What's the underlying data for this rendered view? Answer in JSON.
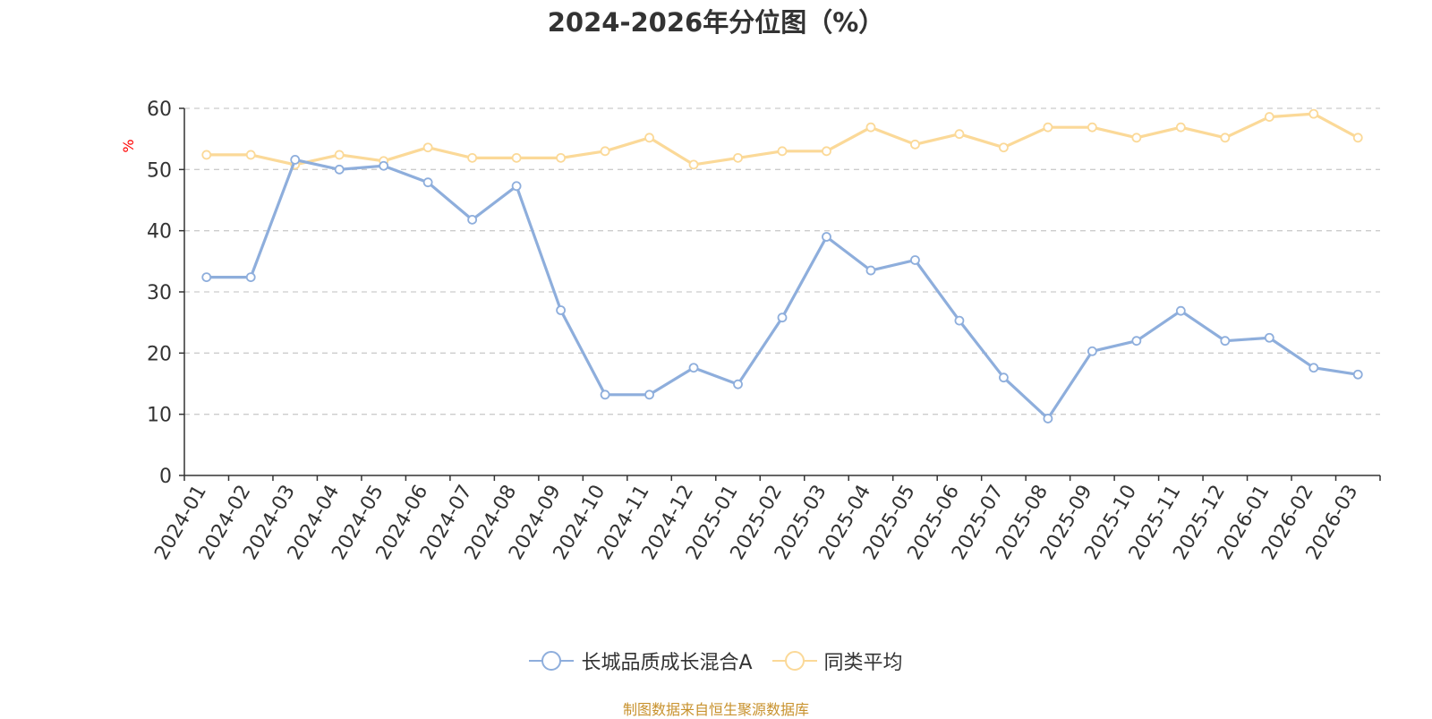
{
  "chart_data": {
    "type": "line",
    "title": "2024-2026年分位图（%）",
    "xlabel": "",
    "ylabel": "%",
    "ylim": [
      0,
      60
    ],
    "yticks": [
      0,
      10,
      20,
      30,
      40,
      50,
      60
    ],
    "grid": true,
    "legend_position": "bottom-center",
    "categories": [
      "2024-01",
      "2024-02",
      "2024-03",
      "2024-04",
      "2024-05",
      "2024-06",
      "2024-07",
      "2024-08",
      "2024-09",
      "2024-10",
      "2024-11",
      "2024-12",
      "2025-01",
      "2025-02",
      "2025-03",
      "2025-04",
      "2025-05",
      "2025-06",
      "2025-07",
      "2025-08",
      "2025-09",
      "2025-10",
      "2025-11",
      "2025-12",
      "2026-01",
      "2026-02",
      "2026-03"
    ],
    "series": [
      {
        "name": "长城品质成长混合A",
        "color": "#8eaedc",
        "values": [
          32.4,
          32.4,
          51.6,
          50.0,
          50.6,
          47.9,
          41.8,
          47.3,
          27.0,
          13.2,
          13.2,
          17.6,
          14.9,
          25.8,
          39.0,
          33.5,
          35.2,
          25.3,
          16.0,
          9.3,
          20.3,
          22.0,
          26.9,
          22.0,
          22.5,
          17.6,
          16.5
        ]
      },
      {
        "name": "同类平均",
        "color": "#fbd998",
        "values": [
          52.4,
          52.4,
          50.8,
          52.4,
          51.4,
          53.6,
          51.9,
          51.9,
          51.9,
          53.0,
          55.2,
          50.8,
          51.9,
          53.0,
          53.0,
          56.9,
          54.1,
          55.8,
          53.6,
          56.9,
          56.9,
          55.2,
          56.9,
          55.2,
          58.6,
          59.1,
          55.2
        ]
      }
    ]
  },
  "source_note": "制图数据来自恒生聚源数据库"
}
